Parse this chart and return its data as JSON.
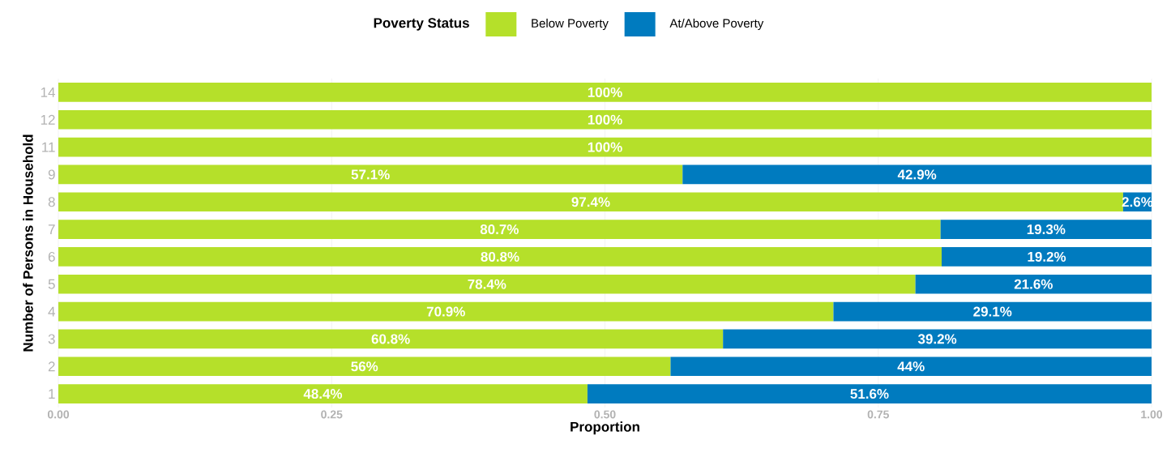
{
  "chart_data": {
    "type": "bar",
    "orientation": "horizontal",
    "stacked": true,
    "xlabel": "Proportion",
    "ylabel": "Number of Persons in Household",
    "legend_title": "Poverty Status",
    "categories": [
      "14",
      "12",
      "11",
      "9",
      "8",
      "7",
      "6",
      "5",
      "4",
      "3",
      "2",
      "1"
    ],
    "series": [
      {
        "name": "Below Poverty",
        "color": "#b5e02a",
        "values": [
          1,
          1,
          1,
          0.571,
          0.974,
          0.807,
          0.808,
          0.784,
          0.709,
          0.608,
          0.56,
          0.484
        ],
        "value_labels": [
          "100%",
          "100%",
          "100%",
          "57.1%",
          "97.4%",
          "80.7%",
          "80.8%",
          "78.4%",
          "70.9%",
          "60.8%",
          "56%",
          "48.4%"
        ]
      },
      {
        "name": "At/Above Poverty",
        "color": "#007bbf",
        "values": [
          null,
          null,
          null,
          0.429,
          0.026,
          0.193,
          0.192,
          0.216,
          0.291,
          0.392,
          0.44,
          0.516
        ],
        "value_labels": [
          null,
          null,
          null,
          "42.9%",
          "2.6%",
          "19.3%",
          "19.2%",
          "21.6%",
          "29.1%",
          "39.2%",
          "44%",
          "51.6%"
        ]
      }
    ],
    "xlim": [
      0,
      1
    ],
    "xticks": [
      {
        "value": 0,
        "label": "0.00"
      },
      {
        "value": 0.25,
        "label": "0.25"
      },
      {
        "value": 0.5,
        "label": "0.50"
      },
      {
        "value": 0.75,
        "label": "0.75"
      },
      {
        "value": 1,
        "label": "1.00"
      }
    ],
    "grid": "x",
    "legend": "top"
  }
}
